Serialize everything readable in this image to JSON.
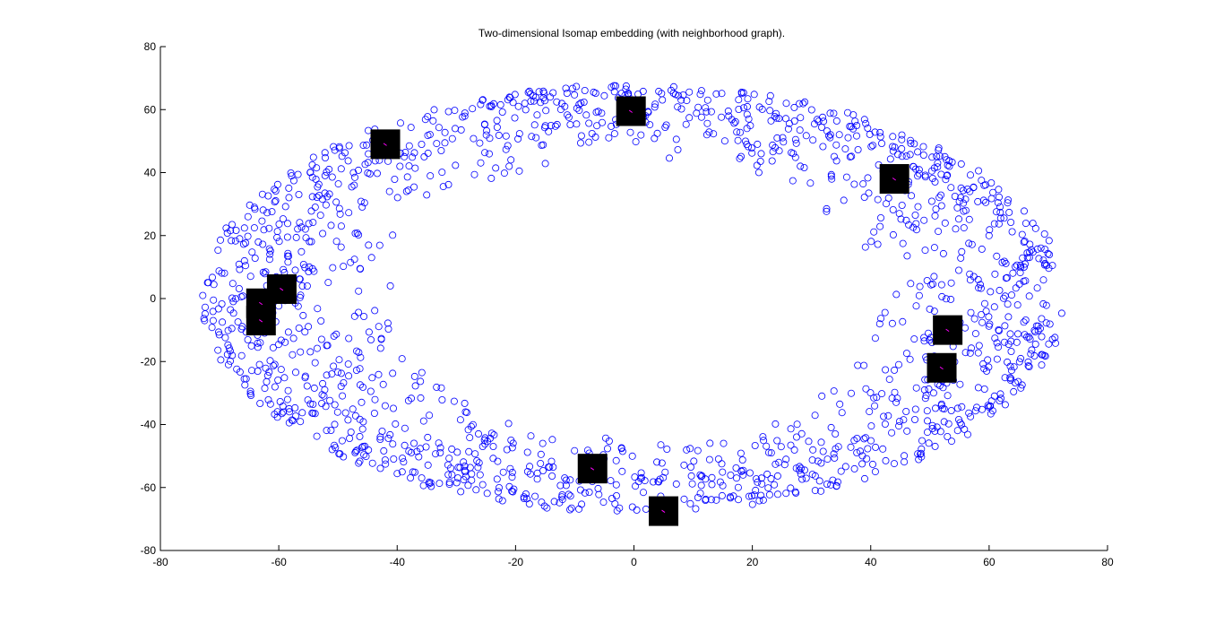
{
  "chart_data": {
    "type": "scatter",
    "title": "Two-dimensional Isomap embedding (with neighborhood graph).",
    "xlabel": "",
    "ylabel": "",
    "xlim": [
      -80,
      80
    ],
    "ylim": [
      -80,
      80
    ],
    "xticks": [
      -80,
      -60,
      -40,
      -20,
      0,
      20,
      40,
      60,
      80
    ],
    "yticks": [
      -80,
      -60,
      -40,
      -20,
      0,
      20,
      40,
      60,
      80
    ],
    "xtick_labels": [
      "-80",
      "-60",
      "-40",
      "-20",
      "0",
      "20",
      "40",
      "60",
      "80"
    ],
    "ytick_labels": [
      "-80",
      "-60",
      "-40",
      "-20",
      "0",
      "20",
      "40",
      "60",
      "80"
    ],
    "grid": false,
    "point_color": "#0000ff",
    "marker": "circle",
    "point_distribution": {
      "shape": "elliptical annulus",
      "center": [
        0,
        0
      ],
      "outer_radius_x": 73,
      "outer_radius_y": 68,
      "inner_radius_x": 40,
      "inner_radius_y": 44,
      "approx_count": 1600
    },
    "image_markers": [
      {
        "x": -0.5,
        "y": 59.5
      },
      {
        "x": -42,
        "y": 49
      },
      {
        "x": 44,
        "y": 38
      },
      {
        "x": -59.5,
        "y": 3
      },
      {
        "x": -63,
        "y": -1.5
      },
      {
        "x": -63,
        "y": -7
      },
      {
        "x": 53,
        "y": -10
      },
      {
        "x": 52,
        "y": -22
      },
      {
        "x": -7,
        "y": -54
      },
      {
        "x": 5,
        "y": -67.5
      }
    ]
  }
}
